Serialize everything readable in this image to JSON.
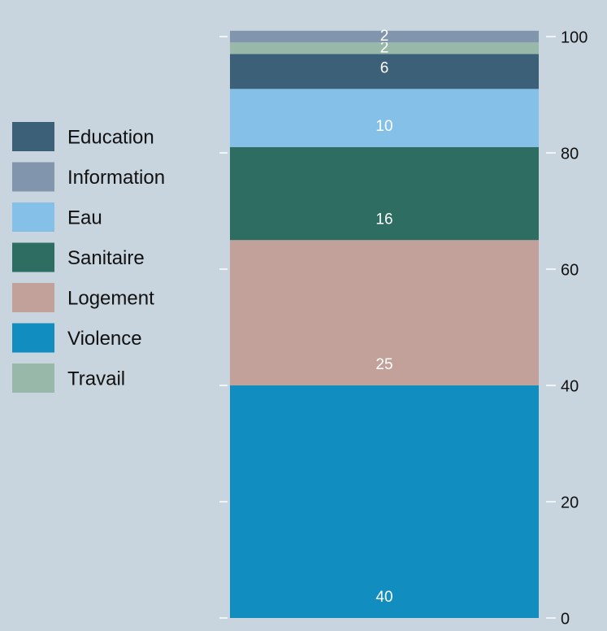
{
  "chart_data": {
    "type": "stacked_bar",
    "series": [
      {
        "name": "Education",
        "color": "#3d6079",
        "values": [
          6
        ]
      },
      {
        "name": "Information",
        "color": "#8196ad",
        "values": [
          2
        ]
      },
      {
        "name": "Eau",
        "color": "#85c0e8",
        "values": [
          10
        ]
      },
      {
        "name": "Sanitaire",
        "color": "#2e6e62",
        "values": [
          16
        ]
      },
      {
        "name": "Logement",
        "color": "#c3a19b",
        "values": [
          25
        ]
      },
      {
        "name": "Violence",
        "color": "#128dbf",
        "values": [
          40
        ]
      },
      {
        "name": "Travail",
        "color": "#98b8aa",
        "values": [
          2
        ]
      }
    ],
    "stack_order": [
      5,
      4,
      3,
      2,
      0,
      6,
      1
    ],
    "ylim": [
      0,
      100
    ],
    "yticks": [
      0,
      20,
      40,
      60,
      80,
      100
    ]
  }
}
